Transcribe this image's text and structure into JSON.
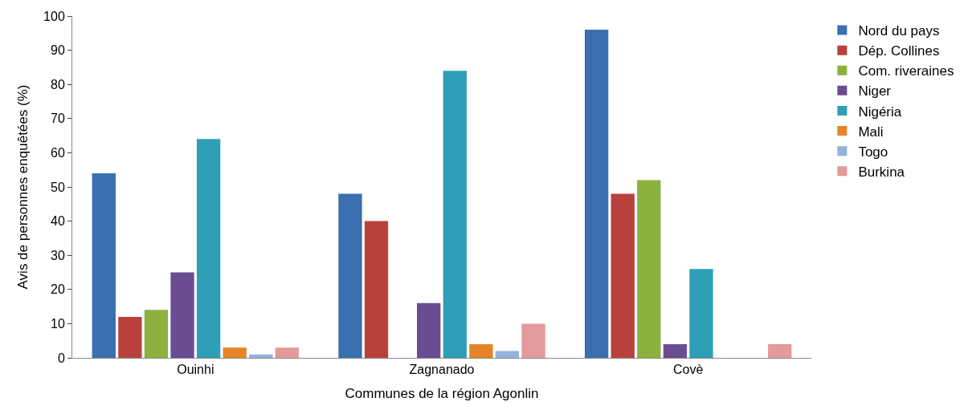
{
  "chart_data": {
    "type": "bar",
    "xlabel": "Communes de la région Agonlin",
    "ylabel": "Avis de personnes enquêtées (%)",
    "categories": [
      "Ouinhi",
      "Zagnanado",
      "Covè"
    ],
    "series": [
      {
        "name": "Nord du pays",
        "color": "#3a6fb0",
        "values": [
          54,
          48,
          96
        ]
      },
      {
        "name": "Dép. Collines",
        "color": "#b8413d",
        "values": [
          12,
          40,
          48
        ]
      },
      {
        "name": "Com. riveraines",
        "color": "#8db13f",
        "values": [
          14,
          0,
          52
        ]
      },
      {
        "name": "Niger",
        "color": "#6a4c93",
        "values": [
          25,
          16,
          4
        ]
      },
      {
        "name": "Nigéria",
        "color": "#2f9fb8",
        "values": [
          64,
          84,
          26
        ]
      },
      {
        "name": "Mali",
        "color": "#e6842a",
        "values": [
          3,
          4,
          0
        ]
      },
      {
        "name": "Togo",
        "color": "#93b1dd",
        "values": [
          1,
          2,
          0
        ]
      },
      {
        "name": "Burkina",
        "color": "#e39a9a",
        "values": [
          3,
          10,
          4
        ]
      }
    ],
    "ylim": [
      0,
      100
    ],
    "yticks": [
      0,
      10,
      20,
      30,
      40,
      50,
      60,
      70,
      80,
      90,
      100
    ],
    "grid": false,
    "legend": "right"
  }
}
